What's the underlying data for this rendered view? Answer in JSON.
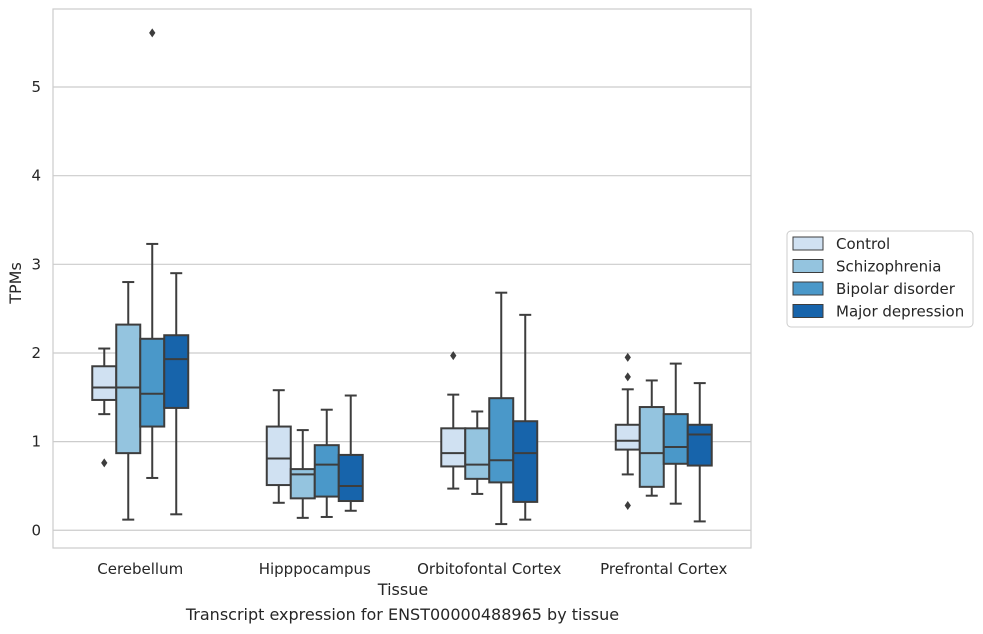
{
  "caption": "Transcript expression for ENST00000488965 by tissue",
  "chart_data": {
    "type": "box",
    "title": "",
    "xlabel": "Tissue",
    "ylabel": "TPMs",
    "ylim": [
      -0.2,
      5.88
    ],
    "yticks": [
      0,
      1,
      2,
      3,
      4,
      5
    ],
    "grid": "horizontal",
    "legend_position": "right",
    "categories": [
      "Cerebellum",
      "Hipppocampus",
      "Orbitofontal Cortex",
      "Prefrontal Cortex"
    ],
    "series": [
      {
        "name": "Control",
        "color": "#d0e1f2",
        "boxes": [
          {
            "whislo": 1.31,
            "q1": 1.47,
            "med": 1.61,
            "q3": 1.85,
            "whishi": 2.05,
            "fliers": [
              0.76
            ]
          },
          {
            "whislo": 0.31,
            "q1": 0.51,
            "med": 0.81,
            "q3": 1.17,
            "whishi": 1.58,
            "fliers": []
          },
          {
            "whislo": 0.47,
            "q1": 0.72,
            "med": 0.87,
            "q3": 1.15,
            "whishi": 1.53,
            "fliers": [
              1.97
            ]
          },
          {
            "whislo": 0.63,
            "q1": 0.91,
            "med": 1.01,
            "q3": 1.19,
            "whishi": 1.59,
            "fliers": [
              1.95,
              1.73,
              0.28
            ]
          }
        ]
      },
      {
        "name": "Schizophrenia",
        "color": "#94c4df",
        "boxes": [
          {
            "whislo": 0.12,
            "q1": 0.87,
            "med": 1.61,
            "q3": 2.32,
            "whishi": 2.8,
            "fliers": []
          },
          {
            "whislo": 0.14,
            "q1": 0.36,
            "med": 0.63,
            "q3": 0.69,
            "whishi": 1.13,
            "fliers": []
          },
          {
            "whislo": 0.41,
            "q1": 0.58,
            "med": 0.74,
            "q3": 1.15,
            "whishi": 1.34,
            "fliers": []
          },
          {
            "whislo": 0.39,
            "q1": 0.49,
            "med": 0.87,
            "q3": 1.39,
            "whishi": 1.69,
            "fliers": []
          }
        ]
      },
      {
        "name": "Bipolar disorder",
        "color": "#4a98c9",
        "boxes": [
          {
            "whislo": 0.59,
            "q1": 1.17,
            "med": 1.54,
            "q3": 2.16,
            "whishi": 3.23,
            "fliers": [
              5.61
            ]
          },
          {
            "whislo": 0.15,
            "q1": 0.38,
            "med": 0.74,
            "q3": 0.96,
            "whishi": 1.36,
            "fliers": []
          },
          {
            "whislo": 0.07,
            "q1": 0.54,
            "med": 0.79,
            "q3": 1.49,
            "whishi": 2.68,
            "fliers": []
          },
          {
            "whislo": 0.3,
            "q1": 0.75,
            "med": 0.94,
            "q3": 1.31,
            "whishi": 1.88,
            "fliers": []
          }
        ]
      },
      {
        "name": "Major depression",
        "color": "#1764ab",
        "boxes": [
          {
            "whislo": 0.18,
            "q1": 1.38,
            "med": 1.93,
            "q3": 2.2,
            "whishi": 2.9,
            "fliers": []
          },
          {
            "whislo": 0.22,
            "q1": 0.33,
            "med": 0.5,
            "q3": 0.85,
            "whishi": 1.52,
            "fliers": []
          },
          {
            "whislo": 0.12,
            "q1": 0.32,
            "med": 0.87,
            "q3": 1.23,
            "whishi": 2.43,
            "fliers": []
          },
          {
            "whislo": 0.1,
            "q1": 0.73,
            "med": 1.08,
            "q3": 1.19,
            "whishi": 1.66,
            "fliers": []
          }
        ]
      }
    ]
  }
}
